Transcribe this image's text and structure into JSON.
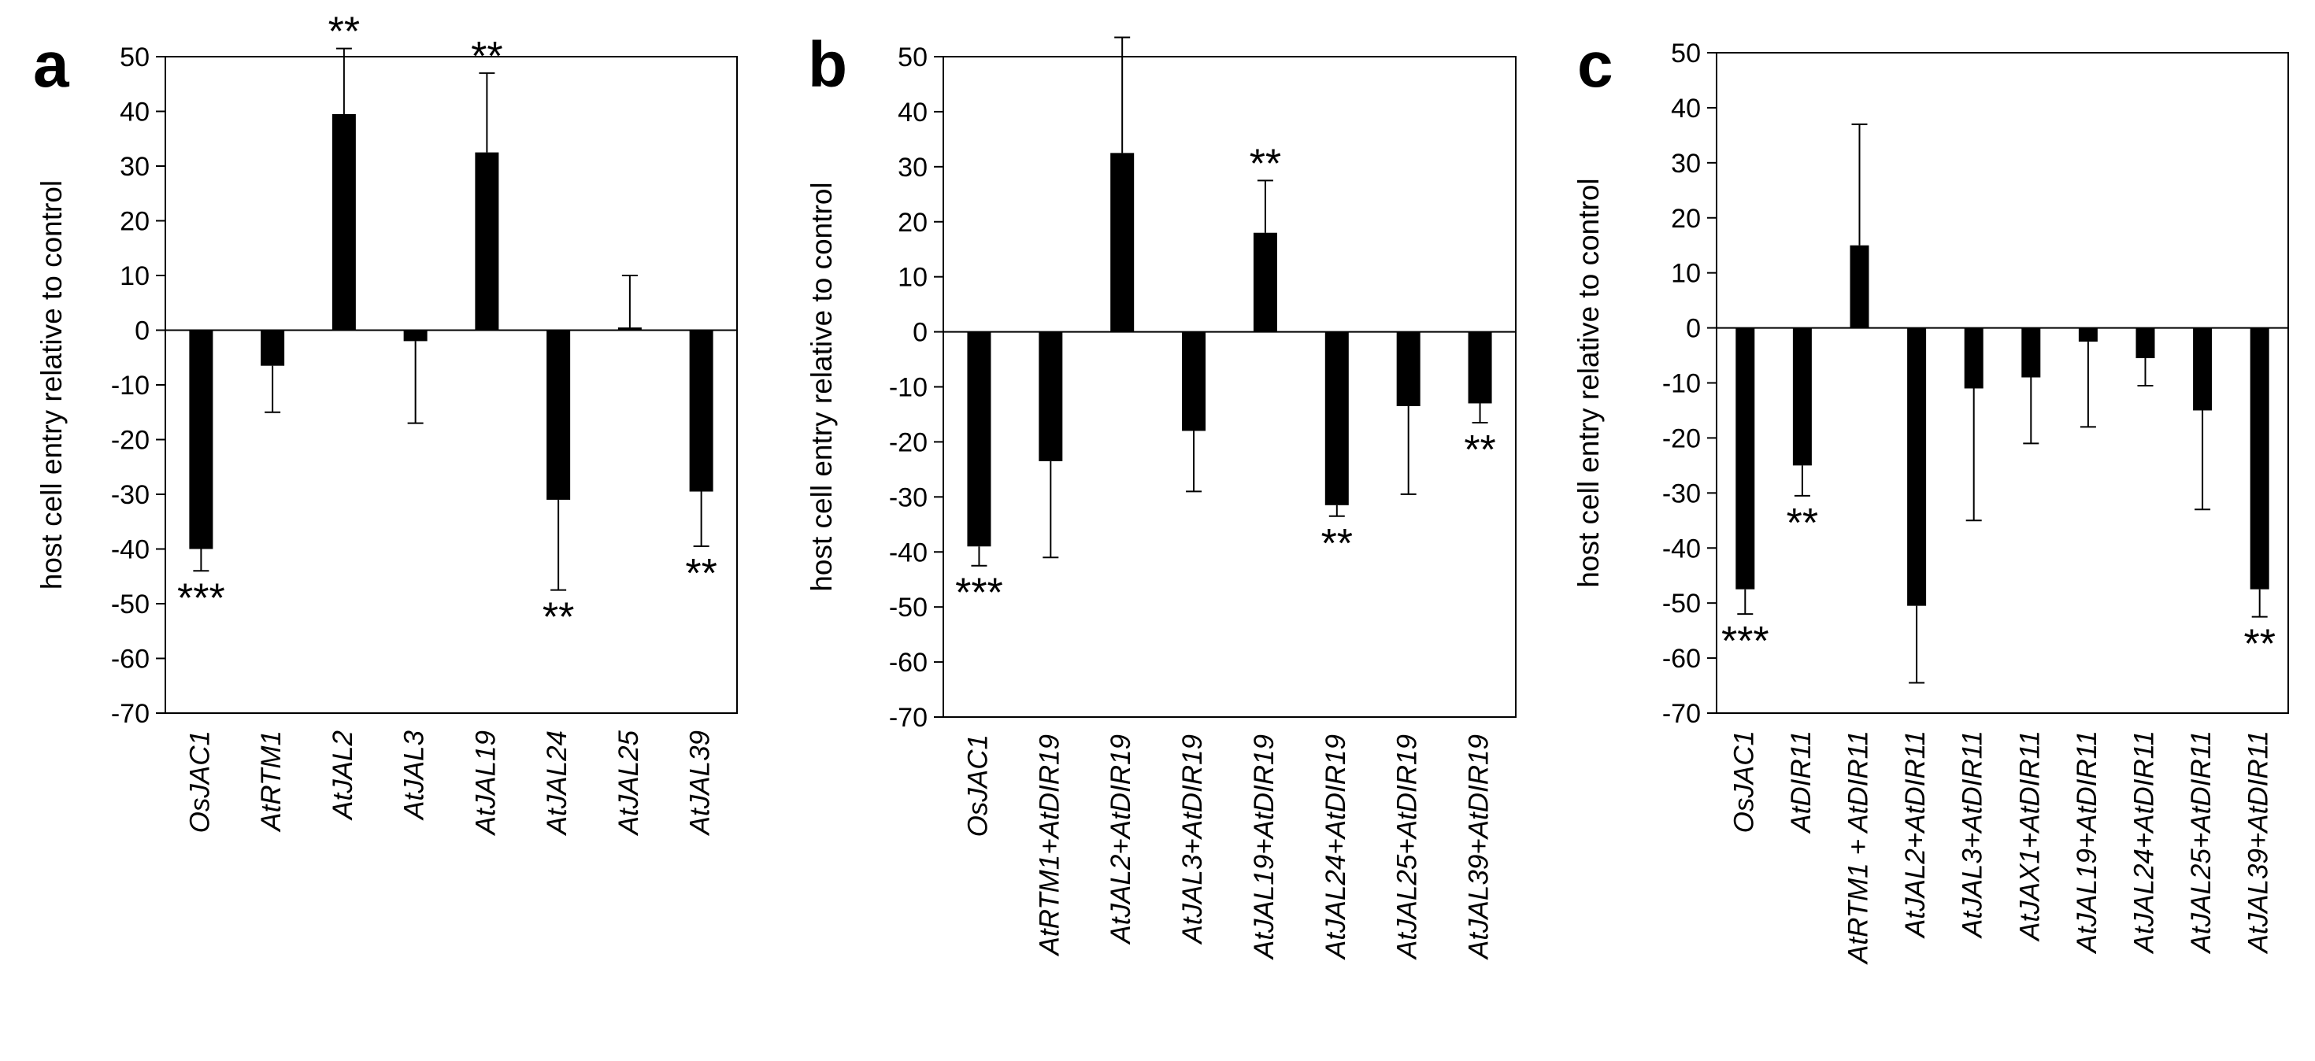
{
  "chart_data": [
    {
      "type": "bar",
      "panel": "a",
      "ylabel": "host cell entry relative to control",
      "ylim": [
        -70,
        50
      ],
      "yticks": [
        -70,
        -60,
        -50,
        -40,
        -30,
        -20,
        -10,
        0,
        10,
        20,
        30,
        40,
        50
      ],
      "categories": [
        "OsJAC1",
        "AtRTM1",
        "AtJAL2",
        "AtJAL3",
        "AtJAL19",
        "AtJAL24",
        "AtJAL25",
        "AtJAL39"
      ],
      "values": [
        -40,
        -6.5,
        39.5,
        -2,
        32.5,
        -31,
        0.5,
        -29.5
      ],
      "errors": [
        4,
        8.5,
        12,
        15,
        14.5,
        16.5,
        9.5,
        10
      ],
      "significance": [
        "***",
        "",
        "**",
        "",
        "**",
        "**",
        "",
        "**"
      ],
      "legend": "none"
    },
    {
      "type": "bar",
      "panel": "b",
      "ylabel": "host cell entry relative to control",
      "ylim": [
        -70,
        50
      ],
      "yticks": [
        -70,
        -60,
        -50,
        -40,
        -30,
        -20,
        -10,
        0,
        10,
        20,
        30,
        40,
        50
      ],
      "categories": [
        "OsJAC1",
        "AtRTM1+AtDIR19",
        "AtJAL2+AtDIR19",
        "AtJAL3+AtDIR19",
        "AtJAL19+AtDIR19",
        "AtJAL24+AtDIR19",
        "AtJAL25+AtDIR19",
        "AtJAL39+AtDIR19"
      ],
      "values": [
        -39,
        -23.5,
        32.5,
        -18,
        18,
        -31.5,
        -13.5,
        -13
      ],
      "errors": [
        3.5,
        17.5,
        21,
        11,
        9.5,
        2,
        16,
        3.5
      ],
      "significance": [
        "***",
        "",
        "",
        "",
        "**",
        "**",
        "",
        "**"
      ],
      "legend": "none"
    },
    {
      "type": "bar",
      "panel": "c",
      "ylabel": "host cell entry relative to control",
      "ylim": [
        -70,
        50
      ],
      "yticks": [
        -70,
        -60,
        -50,
        -40,
        -30,
        -20,
        -10,
        0,
        10,
        20,
        30,
        40,
        50
      ],
      "categories": [
        "OsJAC1",
        "AtDIR11",
        "AtRTM1 + AtDIR11",
        "AtJAL2+AtDIR11",
        "AtJAL3+AtDIR11",
        "AtJAX1+AtDIR11",
        "AtJAL19+AtDIR11",
        "AtJAL24+AtDIR11",
        "AtJAL25+AtDIR11",
        "AtJAL39+AtDIR11"
      ],
      "values": [
        -47.5,
        -25,
        15,
        -50.5,
        -11,
        -9,
        -2.5,
        -5.5,
        -15,
        -47.5
      ],
      "errors": [
        4.5,
        5.5,
        22,
        14,
        24,
        12,
        15.5,
        5,
        18,
        5
      ],
      "significance": [
        "***",
        "**",
        "",
        "",
        "",
        "",
        "",
        "",
        "",
        "**"
      ],
      "legend": "none"
    }
  ]
}
